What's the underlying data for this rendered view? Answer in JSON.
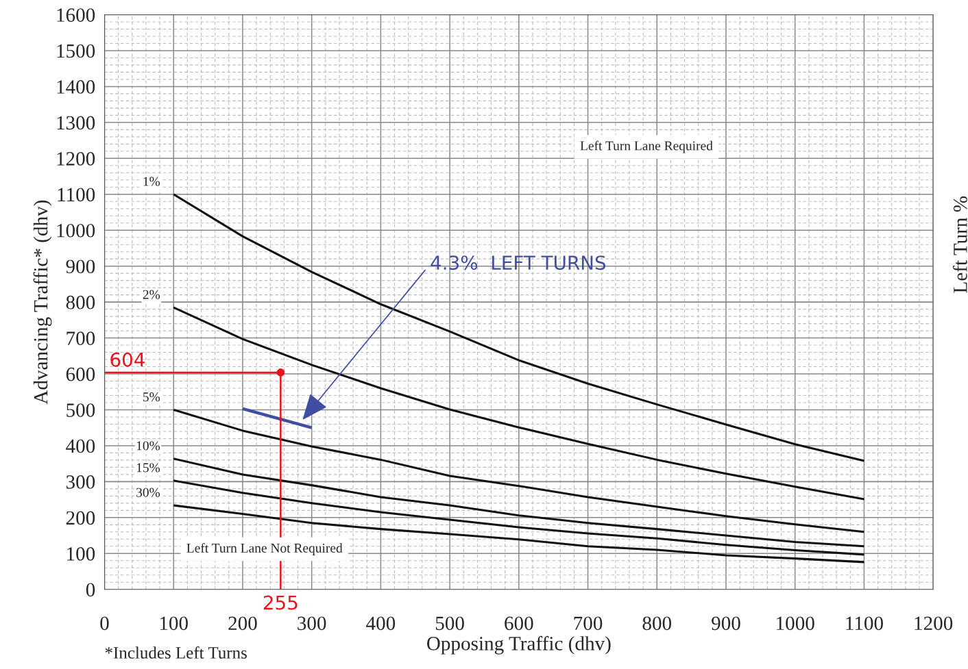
{
  "chart_data": {
    "type": "line",
    "xlabel": "Opposing Traffic (dhv)",
    "ylabel": "Advancing Traffic* (dhv)",
    "y2label": "Left Turn %",
    "xlim": [
      0,
      1200
    ],
    "xticks": [
      0,
      100,
      200,
      300,
      400,
      500,
      600,
      700,
      800,
      900,
      1000,
      1100,
      1200
    ],
    "ylim": [
      0,
      1600
    ],
    "yticks": [
      0,
      100,
      200,
      300,
      400,
      500,
      600,
      700,
      800,
      900,
      1000,
      1100,
      1200,
      1300,
      1400,
      1500,
      1600
    ],
    "grid": true,
    "series": [
      {
        "name": "1%",
        "color": "#111111",
        "x": [
          100,
          200,
          300,
          400,
          500,
          600,
          700,
          800,
          900,
          1000,
          1100
        ],
        "values": [
          1100,
          983,
          884,
          794,
          718,
          638,
          573,
          515,
          459,
          404,
          358
        ]
      },
      {
        "name": "2%",
        "color": "#111111",
        "x": [
          100,
          200,
          300,
          400,
          500,
          600,
          700,
          800,
          900,
          1000,
          1100
        ],
        "values": [
          785,
          697,
          625,
          560,
          501,
          451,
          405,
          361,
          322,
          286,
          251
        ]
      },
      {
        "name": "5%",
        "color": "#111111",
        "x": [
          100,
          200,
          300,
          400,
          500,
          600,
          700,
          800,
          900,
          1000,
          1100
        ],
        "values": [
          500,
          442,
          398,
          361,
          316,
          288,
          257,
          230,
          204,
          181,
          160
        ]
      },
      {
        "name": "10%",
        "color": "#111111",
        "x": [
          100,
          200,
          300,
          400,
          500,
          600,
          700,
          800,
          900,
          1000,
          1100
        ],
        "values": [
          364,
          320,
          290,
          257,
          234,
          206,
          185,
          168,
          150,
          132,
          120
        ]
      },
      {
        "name": "15%",
        "color": "#111111",
        "x": [
          100,
          200,
          300,
          400,
          500,
          600,
          700,
          800,
          900,
          1000,
          1100
        ],
        "values": [
          303,
          269,
          240,
          215,
          194,
          173,
          156,
          142,
          124,
          109,
          97
        ]
      },
      {
        "name": "30%",
        "color": "#111111",
        "x": [
          100,
          200,
          300,
          400,
          500,
          600,
          700,
          800,
          900,
          1000,
          1100
        ],
        "values": [
          234,
          210,
          185,
          168,
          154,
          139,
          120,
          110,
          95,
          86,
          76
        ]
      },
      {
        "color": "#3f4ea0",
        "x": [
          200,
          300
        ],
        "values": [
          503,
          450
        ]
      },
      {
        "color": "#e8141c",
        "x": [
          0,
          255,
          255
        ],
        "values": [
          604,
          604,
          0
        ]
      },
      {
        "type": "scatter",
        "color": "#e8141c",
        "x": [
          255
        ],
        "values": [
          604
        ]
      }
    ],
    "annotations": [
      {
        "text": "4.3%  LEFT TURNS",
        "x": 285,
        "y": 468
      },
      {
        "text": "604",
        "x": 0,
        "y": 604
      },
      {
        "text": "255",
        "x": 255,
        "y": 0
      },
      "Left Turn Lane Required",
      "Left Turn Lane Not Required",
      "*Includes Left Turns"
    ]
  }
}
